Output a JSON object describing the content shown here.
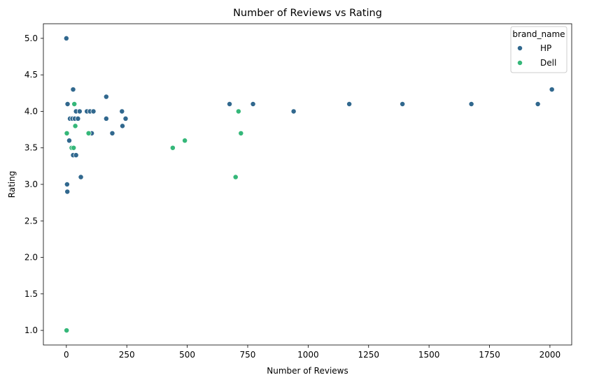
{
  "chart_data": {
    "type": "scatter",
    "title": "Number of Reviews vs Rating",
    "xlabel": "Number of Reviews",
    "ylabel": "Rating",
    "xlim": [
      -95,
      2090
    ],
    "ylim": [
      0.8,
      5.2
    ],
    "xticks": [
      0,
      250,
      500,
      750,
      1000,
      1250,
      1500,
      1750,
      2000
    ],
    "xtick_labels": [
      "0",
      "250",
      "500",
      "750",
      "1000",
      "1250",
      "1500",
      "1750",
      "2000"
    ],
    "yticks": [
      1.0,
      1.5,
      2.0,
      2.5,
      3.0,
      3.5,
      4.0,
      4.5,
      5.0
    ],
    "ytick_labels": [
      "1.0",
      "1.5",
      "2.0",
      "2.5",
      "3.0",
      "3.5",
      "4.0",
      "4.5",
      "5.0"
    ],
    "grid": false,
    "legend": {
      "title": "brand_name",
      "placement": "top-right"
    },
    "series": [
      {
        "name": "HP",
        "color": "#31688e",
        "points": [
          {
            "x": 0,
            "y": 5.0
          },
          {
            "x": 5,
            "y": 4.1
          },
          {
            "x": 3,
            "y": 3.0
          },
          {
            "x": 4,
            "y": 2.9
          },
          {
            "x": 12,
            "y": 3.6
          },
          {
            "x": 15,
            "y": 3.9
          },
          {
            "x": 28,
            "y": 4.3
          },
          {
            "x": 25,
            "y": 3.9
          },
          {
            "x": 35,
            "y": 3.9
          },
          {
            "x": 40,
            "y": 4.0
          },
          {
            "x": 48,
            "y": 3.9
          },
          {
            "x": 55,
            "y": 4.0
          },
          {
            "x": 28,
            "y": 3.4
          },
          {
            "x": 40,
            "y": 3.4
          },
          {
            "x": 60,
            "y": 3.1
          },
          {
            "x": 85,
            "y": 4.0
          },
          {
            "x": 98,
            "y": 4.0
          },
          {
            "x": 112,
            "y": 4.0
          },
          {
            "x": 105,
            "y": 3.7
          },
          {
            "x": 165,
            "y": 4.2
          },
          {
            "x": 165,
            "y": 3.9
          },
          {
            "x": 190,
            "y": 3.7
          },
          {
            "x": 230,
            "y": 4.0
          },
          {
            "x": 232,
            "y": 3.8
          },
          {
            "x": 245,
            "y": 3.9
          },
          {
            "x": 675,
            "y": 4.1
          },
          {
            "x": 772,
            "y": 4.1
          },
          {
            "x": 940,
            "y": 4.0
          },
          {
            "x": 1170,
            "y": 4.1
          },
          {
            "x": 1390,
            "y": 4.1
          },
          {
            "x": 1675,
            "y": 4.1
          },
          {
            "x": 1950,
            "y": 4.1
          },
          {
            "x": 2008,
            "y": 4.3
          }
        ]
      },
      {
        "name": "Dell",
        "color": "#35b779",
        "points": [
          {
            "x": 2,
            "y": 3.7
          },
          {
            "x": 1,
            "y": 1.0
          },
          {
            "x": 22,
            "y": 3.5
          },
          {
            "x": 30,
            "y": 3.5
          },
          {
            "x": 33,
            "y": 4.1
          },
          {
            "x": 37,
            "y": 3.8
          },
          {
            "x": 92,
            "y": 3.7
          },
          {
            "x": 440,
            "y": 3.5
          },
          {
            "x": 490,
            "y": 3.6
          },
          {
            "x": 700,
            "y": 3.1
          },
          {
            "x": 712,
            "y": 4.0
          },
          {
            "x": 722,
            "y": 3.7
          }
        ]
      }
    ]
  }
}
